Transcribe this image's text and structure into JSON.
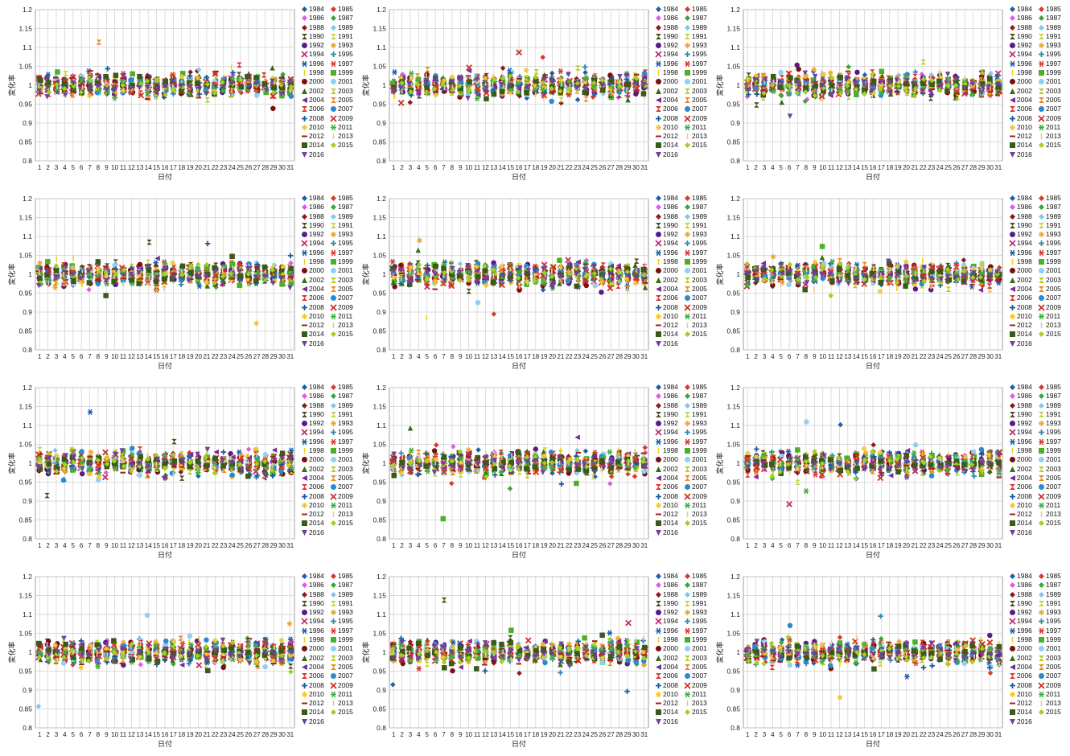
{
  "panel_count": 12,
  "axis": {
    "y_ticks": [
      "0.8",
      "0.85",
      "0.9",
      "0.95",
      "1",
      "1.05",
      "1.1",
      "1.15",
      "1.2"
    ],
    "x_ticks": [
      "1",
      "2",
      "3",
      "4",
      "5",
      "6",
      "7",
      "8",
      "9",
      "10",
      "11",
      "12",
      "13",
      "14",
      "15",
      "16",
      "17",
      "18",
      "19",
      "20",
      "21",
      "22",
      "23",
      "24",
      "25",
      "26",
      "27",
      "28",
      "29",
      "30",
      "31"
    ],
    "ylabel": "変化率",
    "xlabel": "日付"
  },
  "chart_data": {
    "type": "scatter",
    "panels": 12,
    "layout": "4 rows x 3 columns",
    "x": "day of month 1-31",
    "xlim": [
      1,
      31
    ],
    "ylim": [
      0.8,
      1.2
    ],
    "y_tick_step": 0.05,
    "grid": true,
    "legend": "right",
    "series_names": [
      "1984",
      "1985",
      "1986",
      "1987",
      "1988",
      "1989",
      "1990",
      "1991",
      "1992",
      "1993",
      "1994",
      "1995",
      "1996",
      "1997",
      "1998",
      "1999",
      "2000",
      "2001",
      "2002",
      "2003",
      "2004",
      "2005",
      "2006",
      "2007",
      "2008",
      "2009",
      "2010",
      "2011",
      "2012",
      "2013",
      "2014",
      "2015",
      "2016"
    ],
    "series_colors": [
      "#1f5fa6",
      "#d93a2a",
      "#e05ae8",
      "#3aa63a",
      "#8a1c1c",
      "#7ec8f0",
      "#4d4d1a",
      "#c8d43a",
      "#5a1a8a",
      "#f0a830",
      "#c0306a",
      "#2a8ab0",
      "#1f5fa6",
      "#d93a2a",
      "#f5d020",
      "#4caf2a",
      "#7a0f0f",
      "#8fd0f5",
      "#3a6a1a",
      "#b8d020",
      "#7a2a9a",
      "#f08a20",
      "#e03030",
      "#2a8ad0",
      "#1a5a9a",
      "#d03020",
      "#f0c830",
      "#40b040",
      "#a02020",
      "#e8c8a0",
      "#3a5a1a",
      "#a0d020",
      "#7040a0"
    ],
    "series_markers": [
      "diamond",
      "diamond",
      "diamond",
      "diamond",
      "diamond",
      "diamond",
      "bowtie",
      "hourglass",
      "circle",
      "star",
      "x",
      "plus",
      "asterisk",
      "asterisk",
      "bar",
      "square",
      "circle",
      "circle",
      "triangle",
      "hourglass",
      "triangle-left",
      "bowtie",
      "hourglass",
      "circle",
      "plus",
      "x",
      "star",
      "asterisk",
      "dash",
      "bar",
      "square",
      "diamond",
      "triangle-down"
    ],
    "value_note": "Each series holds daily change-rate values clustered around 1.0 (approx. 0.95-1.05) with a few outliers per panel."
  },
  "colors": {
    "grid": "#cfcfcf",
    "axis": "#888888"
  }
}
